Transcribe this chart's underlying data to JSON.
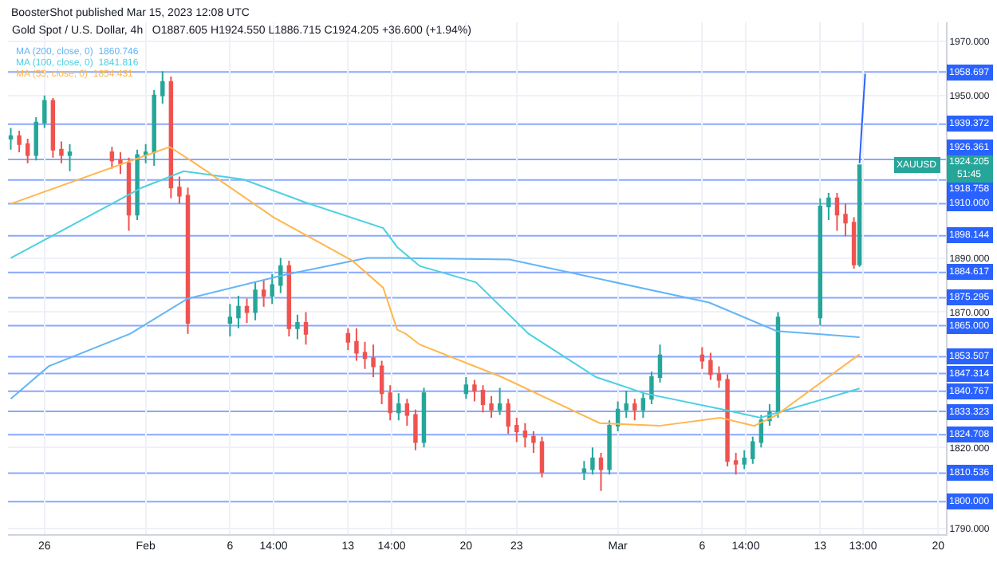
{
  "chart_data": {
    "type": "candlestick",
    "title": "Gold Spot / U.S. Dollar, 4h",
    "subtitle": "O1887.605 H1924.550 L1886.715 C1924.205 +36.600 (+1.94%)",
    "x": [
      "2023-01-24T00:00",
      "2023-01-24T12:00",
      "2023-01-25T00:00",
      "2023-01-25T12:00",
      "2023-01-26T00:00",
      "2023-01-26T12:00",
      "2023-01-27T00:00",
      "2023-01-27T12:00",
      "2023-01-30T00:00",
      "2023-01-30T12:00",
      "2023-01-31T00:00",
      "2023-01-31T12:00",
      "2023-02-01T00:00",
      "2023-02-01T12:00",
      "2023-02-02T00:00",
      "2023-02-02T12:00",
      "2023-02-03T00:00",
      "2023-02-03T12:00",
      "2023-02-06T00:00",
      "2023-02-06T12:00",
      "2023-02-07T00:00",
      "2023-02-07T12:00",
      "2023-02-08T00:00",
      "2023-02-08T12:00",
      "2023-02-09T00:00",
      "2023-02-09T12:00",
      "2023-02-10T00:00",
      "2023-02-10T12:00",
      "2023-02-13T00:00",
      "2023-02-13T12:00",
      "2023-02-14T00:00",
      "2023-02-14T12:00",
      "2023-02-15T00:00",
      "2023-02-15T12:00",
      "2023-02-16T00:00",
      "2023-02-16T12:00",
      "2023-02-17T00:00",
      "2023-02-17T12:00",
      "2023-02-20T00:00",
      "2023-02-20T12:00",
      "2023-02-21T00:00",
      "2023-02-21T12:00",
      "2023-02-22T00:00",
      "2023-02-22T12:00",
      "2023-02-23T00:00",
      "2023-02-23T12:00",
      "2023-02-24T00:00",
      "2023-02-24T12:00",
      "2023-02-27T00:00",
      "2023-02-27T12:00",
      "2023-02-28T00:00",
      "2023-02-28T12:00",
      "2023-03-01T00:00",
      "2023-03-01T12:00",
      "2023-03-02T00:00",
      "2023-03-02T12:00",
      "2023-03-03T00:00",
      "2023-03-03T12:00",
      "2023-03-06T00:00",
      "2023-03-06T12:00",
      "2023-03-07T00:00",
      "2023-03-07T12:00",
      "2023-03-08T00:00",
      "2023-03-08T12:00",
      "2023-03-09T00:00",
      "2023-03-09T12:00",
      "2023-03-10T00:00",
      "2023-03-10T12:00",
      "2023-03-13T00:00",
      "2023-03-13T12:00",
      "2023-03-14T00:00",
      "2023-03-14T12:00",
      "2023-03-15T00:00",
      "2023-03-15T08:00"
    ],
    "ohlc": [
      [
        1934,
        1938,
        1930,
        1935
      ],
      [
        1935,
        1937,
        1929,
        1932
      ],
      [
        1932,
        1934,
        1925,
        1928
      ],
      [
        1928,
        1942,
        1926,
        1940
      ],
      [
        1940,
        1950,
        1938,
        1948
      ],
      [
        1948,
        1949,
        1927,
        1930
      ],
      [
        1930,
        1933,
        1925,
        1928
      ],
      [
        1928,
        1932,
        1922,
        1929
      ],
      [
        1929,
        1931,
        1923,
        1926
      ],
      [
        1926,
        1929,
        1921,
        1925
      ],
      [
        1925,
        1927,
        1900,
        1906
      ],
      [
        1906,
        1930,
        1904,
        1928
      ],
      [
        1928,
        1932,
        1925,
        1929
      ],
      [
        1929,
        1952,
        1924,
        1950
      ],
      [
        1950,
        1959,
        1947,
        1955
      ],
      [
        1955,
        1957,
        1912,
        1916
      ],
      [
        1916,
        1920,
        1910,
        1913
      ],
      [
        1913,
        1916,
        1862,
        1866
      ],
      [
        1866,
        1873,
        1861,
        1868
      ],
      [
        1868,
        1876,
        1864,
        1872
      ],
      [
        1872,
        1875,
        1866,
        1870
      ],
      [
        1870,
        1881,
        1867,
        1878
      ],
      [
        1878,
        1882,
        1872,
        1876
      ],
      [
        1876,
        1884,
        1873,
        1880
      ],
      [
        1880,
        1890,
        1877,
        1887
      ],
      [
        1887,
        1889,
        1861,
        1864
      ],
      [
        1864,
        1869,
        1860,
        1866
      ],
      [
        1866,
        1870,
        1858,
        1862
      ],
      [
        1862,
        1864,
        1856,
        1859
      ],
      [
        1859,
        1864,
        1852,
        1855
      ],
      [
        1855,
        1859,
        1849,
        1853
      ],
      [
        1853,
        1858,
        1846,
        1850
      ],
      [
        1850,
        1852,
        1836,
        1840
      ],
      [
        1840,
        1843,
        1830,
        1833
      ],
      [
        1833,
        1840,
        1830,
        1836
      ],
      [
        1836,
        1838,
        1828,
        1832
      ],
      [
        1832,
        1834,
        1819,
        1822
      ],
      [
        1822,
        1842,
        1820,
        1840
      ],
      [
        1840,
        1846,
        1838,
        1843
      ],
      [
        1843,
        1845,
        1837,
        1841
      ],
      [
        1841,
        1843,
        1833,
        1836
      ],
      [
        1836,
        1839,
        1831,
        1834
      ],
      [
        1834,
        1842,
        1832,
        1836
      ],
      [
        1836,
        1838,
        1825,
        1828
      ],
      [
        1828,
        1831,
        1822,
        1826
      ],
      [
        1826,
        1829,
        1820,
        1824
      ],
      [
        1824,
        1826,
        1818,
        1822
      ],
      [
        1822,
        1824,
        1809,
        1811
      ],
      [
        1811,
        1815,
        1808,
        1812
      ],
      [
        1812,
        1820,
        1810,
        1816
      ],
      [
        1816,
        1818,
        1804,
        1812
      ],
      [
        1812,
        1830,
        1810,
        1828
      ],
      [
        1828,
        1837,
        1826,
        1834
      ],
      [
        1834,
        1841,
        1831,
        1836
      ],
      [
        1836,
        1838,
        1830,
        1834
      ],
      [
        1834,
        1840,
        1831,
        1838
      ],
      [
        1838,
        1848,
        1836,
        1846
      ],
      [
        1846,
        1858,
        1844,
        1854
      ],
      [
        1854,
        1857,
        1849,
        1852
      ],
      [
        1852,
        1855,
        1845,
        1847
      ],
      [
        1847,
        1850,
        1842,
        1845
      ],
      [
        1845,
        1847,
        1813,
        1815
      ],
      [
        1815,
        1818,
        1810,
        1814
      ],
      [
        1814,
        1819,
        1812,
        1816
      ],
      [
        1816,
        1824,
        1814,
        1822
      ],
      [
        1822,
        1832,
        1820,
        1830
      ],
      [
        1830,
        1836,
        1828,
        1833
      ],
      [
        1833,
        1870,
        1831,
        1868
      ],
      [
        1868,
        1912,
        1865,
        1909
      ],
      [
        1909,
        1914,
        1904,
        1912
      ],
      [
        1912,
        1914,
        1900,
        1906
      ],
      [
        1906,
        1910,
        1898,
        1903
      ],
      [
        1903,
        1905,
        1886,
        1887.605
      ],
      [
        1887.605,
        1924.55,
        1886.715,
        1924.205
      ]
    ],
    "series": [
      {
        "type": "line",
        "name": "MA (200, close, 0)",
        "color": "#64b5f6",
        "x": [
          "2023-01-24T00:00",
          "2023-01-26T06:00",
          "2023-01-31T02:00",
          "2023-02-03T12:00",
          "2023-02-09T02:00",
          "2023-02-14T03:00",
          "2023-02-15T22:00",
          "2023-02-22T14:00",
          "2023-03-06T10:00",
          "2023-03-10T10:00",
          "2023-03-15T08:00"
        ],
        "values": [
          1838,
          1850,
          1862,
          1875,
          1883.5,
          1890,
          1890,
          1889.4,
          1873.5,
          1863,
          1860.746
        ]
      },
      {
        "type": "line",
        "name": "MA (100, close, 0)",
        "color": "#4dd0e1",
        "x": [
          "2023-01-24T00:00",
          "2023-01-27T00:00",
          "2023-01-31T19:00",
          "2023-02-03T06:00",
          "2023-02-06T19:00",
          "2023-02-10T10:00",
          "2023-02-15T02:00",
          "2023-02-15T22:00",
          "2023-02-17T06:00",
          "2023-02-20T14:00",
          "2023-02-23T17:00",
          "2023-02-27T17:00",
          "2023-03-02T14:00",
          "2023-03-07T06:00",
          "2023-03-09T11:00",
          "2023-03-15T08:00"
        ],
        "values": [
          1890,
          1900,
          1916,
          1922,
          1919,
          1910.6,
          1901,
          1894,
          1887,
          1881,
          1862,
          1846,
          1840,
          1834,
          1831,
          1841.816
        ]
      },
      {
        "type": "line",
        "name": "MA (55, close, 0)",
        "color": "#ffb74d",
        "x": [
          "2023-01-24T00:00",
          "2023-02-02T10:00",
          "2023-02-03T22:00",
          "2023-02-08T14:00",
          "2023-02-13T06:00",
          "2023-02-15T02:00",
          "2023-02-15T22:00",
          "2023-02-16T10:00",
          "2023-02-17T06:00",
          "2023-02-22T03:00",
          "2023-02-27T22:00",
          "2023-03-03T11:00",
          "2023-03-07T02:00",
          "2023-03-09T02:00",
          "2023-03-10T10:00",
          "2023-03-15T08:00"
        ],
        "values": [
          1910,
          1931,
          1925,
          1905,
          1889,
          1879,
          1863.5,
          1862,
          1858,
          1846,
          1829,
          1828,
          1831,
          1828,
          1832,
          1854.431
        ]
      },
      {
        "type": "line",
        "color": "#2962ff",
        "x": [
          "2023-03-15T08:00",
          "2023-03-15T16:00"
        ],
        "values": [
          1925,
          1958
        ]
      }
    ],
    "xlim": [
      "2023-01-23T20:00",
      "2023-03-20T11:00"
    ],
    "xticks": [
      {
        "value": "2023-01-26",
        "label": "26"
      },
      {
        "value": "2023-02-01",
        "label": "Feb"
      },
      {
        "value": "2023-02-06",
        "label": "6"
      },
      {
        "value": "2023-02-08T14:00",
        "label": "14:00"
      },
      {
        "value": "2023-02-13",
        "label": "13"
      },
      {
        "value": "2023-02-15T14:00",
        "label": "14:00"
      },
      {
        "value": "2023-02-20",
        "label": "20"
      },
      {
        "value": "2023-02-23",
        "label": "23"
      },
      {
        "value": "2023-03-01",
        "label": "Mar"
      },
      {
        "value": "2023-03-06",
        "label": "6"
      },
      {
        "value": "2023-03-08T14:00",
        "label": "14:00"
      },
      {
        "value": "2023-03-13",
        "label": "13"
      },
      {
        "value": "2023-03-15T13:00",
        "label": "13:00"
      },
      {
        "value": "2023-03-20",
        "label": "20"
      }
    ],
    "ylim": [
      1788,
      1977
    ],
    "yticks": [
      {
        "value": 1790,
        "label": "1790.000"
      },
      {
        "value": 1820,
        "label": "1820.000"
      },
      {
        "value": 1870,
        "label": "1870.000"
      },
      {
        "value": 1890,
        "label": "1890.000"
      },
      {
        "value": 1950,
        "label": "1950.000"
      },
      {
        "value": 1970,
        "label": "1970.000"
      }
    ],
    "ref_lines": [
      {
        "axis": "y",
        "value": 1958.697,
        "label": "1958.697",
        "color": "#2962ff"
      },
      {
        "axis": "y",
        "value": 1939.372,
        "label": "1939.372",
        "color": "#2962ff"
      },
      {
        "axis": "y",
        "value": 1926.361,
        "label": "1926.361",
        "color": "#2962ff"
      },
      {
        "axis": "y",
        "value": 1918.758,
        "label": "1918.758",
        "color": "#2962ff"
      },
      {
        "axis": "y",
        "value": 1910.0,
        "label": "1910.000",
        "color": "#2962ff"
      },
      {
        "axis": "y",
        "value": 1898.144,
        "label": "1898.144",
        "color": "#2962ff"
      },
      {
        "axis": "y",
        "value": 1884.617,
        "label": "1884.617",
        "color": "#2962ff"
      },
      {
        "axis": "y",
        "value": 1875.295,
        "label": "1875.295",
        "color": "#2962ff"
      },
      {
        "axis": "y",
        "value": 1865.0,
        "label": "1865.000",
        "color": "#2962ff"
      },
      {
        "axis": "y",
        "value": 1853.507,
        "label": "1853.507",
        "color": "#2962ff"
      },
      {
        "axis": "y",
        "value": 1847.314,
        "label": "1847.314",
        "color": "#2962ff"
      },
      {
        "axis": "y",
        "value": 1840.767,
        "label": "1840.767",
        "color": "#2962ff"
      },
      {
        "axis": "y",
        "value": 1833.323,
        "label": "1833.323",
        "color": "#2962ff"
      },
      {
        "axis": "y",
        "value": 1824.708,
        "label": "1824.708",
        "color": "#2962ff"
      },
      {
        "axis": "y",
        "value": 1810.536,
        "label": "1810.536",
        "color": "#2962ff"
      },
      {
        "axis": "y",
        "value": 1800.0,
        "label": "1800.000",
        "color": "#2962ff"
      }
    ],
    "annotations": [
      "BoosterShot published Mar 15, 2023 12:08 UTC",
      "1860.746",
      "1841.816",
      "1854.431",
      {
        "text": "XAUUSD",
        "y": 1924.205
      },
      {
        "text": "1924.205\n51:45",
        "y": 1924.205
      }
    ],
    "grid": true
  }
}
